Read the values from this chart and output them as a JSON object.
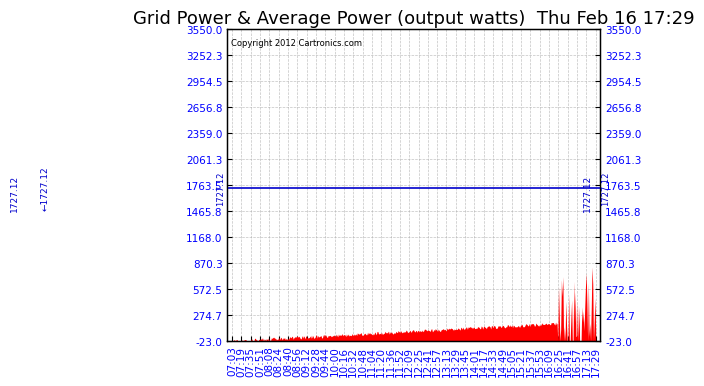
{
  "title": "Grid Power & Average Power (output watts)  Thu Feb 16 17:29",
  "copyright": "Copyright 2012 Cartronics.com",
  "avg_value": 1727.12,
  "ymin": -23.0,
  "ymax": 3550.0,
  "yticks": [
    -23.0,
    274.7,
    572.5,
    870.3,
    1168.0,
    1465.8,
    1763.5,
    2061.3,
    2359.0,
    2656.8,
    2954.5,
    3252.3,
    3550.0
  ],
  "fill_color": "#FF0000",
  "avg_line_color": "#0000CC",
  "background_color": "#FFFFFF",
  "grid_color": "#AAAAAA",
  "xtick_labels": [
    "07:03",
    "07:19",
    "07:35",
    "07:51",
    "08:08",
    "08:24",
    "08:40",
    "08:56",
    "09:12",
    "09:28",
    "09:44",
    "10:00",
    "10:16",
    "10:32",
    "10:48",
    "11:04",
    "11:20",
    "11:36",
    "11:52",
    "12:09",
    "12:25",
    "12:41",
    "12:57",
    "13:13",
    "13:29",
    "13:45",
    "14:01",
    "14:17",
    "14:33",
    "14:49",
    "15:05",
    "15:21",
    "15:37",
    "15:53",
    "16:09",
    "16:25",
    "16:41",
    "16:57",
    "17:13",
    "17:29"
  ],
  "title_fontsize": 13,
  "tick_fontsize": 7.5
}
